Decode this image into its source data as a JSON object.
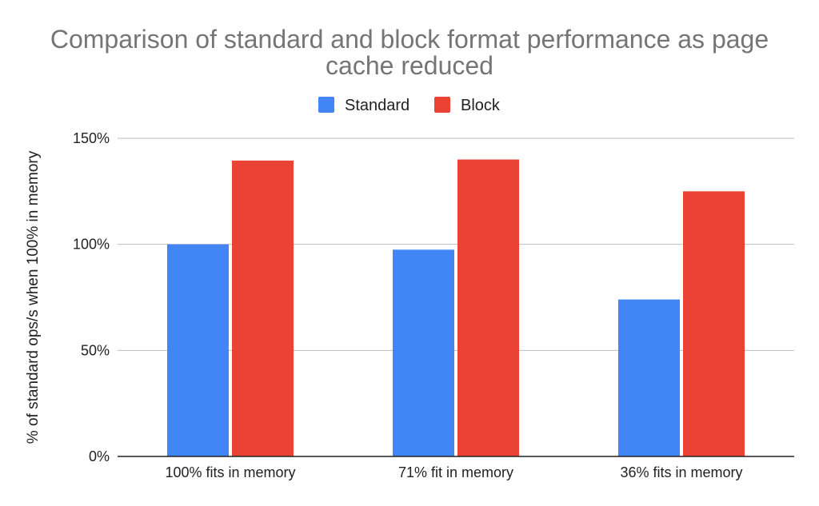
{
  "chart_data": {
    "type": "bar",
    "title_lines": [
      "Comparison of standard and block format performance as page",
      "cache reduced"
    ],
    "ylabel": "% of standard ops/s when 100% in memory",
    "xlabel": "",
    "categories": [
      "100% fits in memory",
      "71% fit in memory",
      "36% fits in memory"
    ],
    "series": [
      {
        "name": "Standard",
        "color": "#4285f4",
        "values": [
          100,
          97.5,
          74
        ]
      },
      {
        "name": "Block",
        "color": "#ea4335",
        "values": [
          139.5,
          140,
          125
        ]
      }
    ],
    "ylim": [
      0,
      150
    ],
    "yticks": [
      0,
      50,
      100,
      150
    ],
    "ytick_labels": [
      "0%",
      "50%",
      "100%",
      "150%"
    ],
    "grid": true,
    "legend_position": "top-center"
  }
}
